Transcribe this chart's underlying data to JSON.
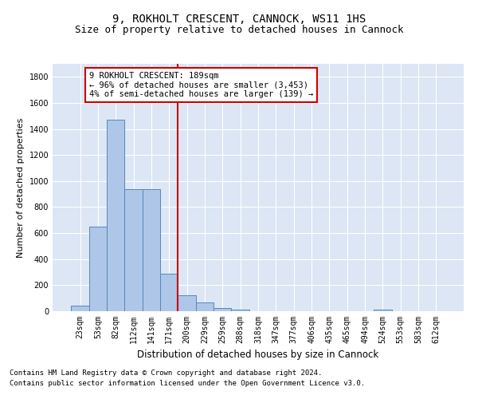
{
  "title1": "9, ROKHOLT CRESCENT, CANNOCK, WS11 1HS",
  "title2": "Size of property relative to detached houses in Cannock",
  "xlabel": "Distribution of detached houses by size in Cannock",
  "ylabel": "Number of detached properties",
  "footnote1": "Contains HM Land Registry data © Crown copyright and database right 2024.",
  "footnote2": "Contains public sector information licensed under the Open Government Licence v3.0.",
  "bin_labels": [
    "23sqm",
    "53sqm",
    "82sqm",
    "112sqm",
    "141sqm",
    "171sqm",
    "200sqm",
    "229sqm",
    "259sqm",
    "288sqm",
    "318sqm",
    "347sqm",
    "377sqm",
    "406sqm",
    "435sqm",
    "465sqm",
    "494sqm",
    "524sqm",
    "553sqm",
    "583sqm",
    "612sqm"
  ],
  "bar_values": [
    40,
    650,
    1470,
    935,
    935,
    290,
    125,
    65,
    25,
    15,
    0,
    0,
    0,
    0,
    0,
    0,
    0,
    15,
    0,
    0,
    0
  ],
  "bar_color": "#aec6e8",
  "bar_edge_color": "#5588bb",
  "bar_width": 1.0,
  "vline_color": "#cc0000",
  "vline_x_index": 5.5,
  "annotation_text": "9 ROKHOLT CRESCENT: 189sqm\n← 96% of detached houses are smaller (3,453)\n4% of semi-detached houses are larger (139) →",
  "annotation_box_color": "#cc0000",
  "ylim": [
    0,
    1900
  ],
  "yticks": [
    0,
    200,
    400,
    600,
    800,
    1000,
    1200,
    1400,
    1600,
    1800
  ],
  "bg_color": "#dce6f5",
  "grid_color": "#ffffff",
  "title1_fontsize": 10,
  "title2_fontsize": 9,
  "xlabel_fontsize": 8.5,
  "ylabel_fontsize": 8,
  "tick_fontsize": 7,
  "footnote_fontsize": 6.5,
  "ann_fontsize": 7.5
}
